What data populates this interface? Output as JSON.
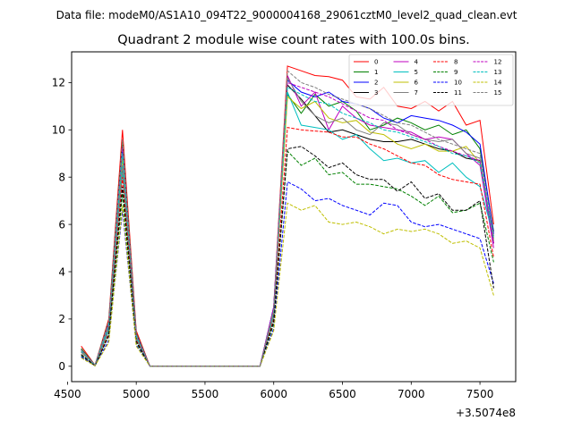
{
  "chart_data": {
    "type": "line",
    "suptitle": "Data file: modeM0/AS1A10_094T22_9000004168_29061cztM0_level2_quad_clean.evt",
    "title": "Quadrant 2 module wise count rates with 100.0s bins.",
    "xlabel": "",
    "ylabel": "",
    "x_offset_label": "+3.5074e8",
    "xlim": [
      4530,
      7760
    ],
    "ylim": [
      -0.65,
      13.3
    ],
    "xticks": [
      4500,
      5000,
      5500,
      6000,
      6500,
      7000,
      7500
    ],
    "xtick_labels": [
      "4500",
      "5000",
      "5500",
      "6000",
      "6500",
      "7000",
      "7500"
    ],
    "yticks": [
      0,
      2,
      4,
      6,
      8,
      10,
      12
    ],
    "ytick_labels": [
      "0",
      "2",
      "4",
      "6",
      "8",
      "10",
      "12"
    ],
    "legend_placement": "top-right",
    "legend_columns": 4,
    "x": [
      4600,
      4700,
      4800,
      4900,
      5000,
      5100,
      5200,
      5300,
      5400,
      5500,
      5600,
      5700,
      5800,
      5900,
      6000,
      6100,
      6200,
      6300,
      6400,
      6500,
      6600,
      6700,
      6800,
      6900,
      7000,
      7100,
      7200,
      7300,
      7400,
      7500,
      7600
    ],
    "series": [
      {
        "name": "0",
        "color": "#ff0000",
        "dash": false,
        "values": [
          0.85,
          0.05,
          2.0,
          10.0,
          1.5,
          0,
          0,
          0,
          0,
          0,
          0,
          0,
          0,
          0,
          2.5,
          12.7,
          12.5,
          12.3,
          12.25,
          12.1,
          11.4,
          11.3,
          11.8,
          11.0,
          10.9,
          11.2,
          10.8,
          11.2,
          10.2,
          10.4,
          6.0
        ]
      },
      {
        "name": "1",
        "color": "#008000",
        "dash": false,
        "values": [
          0.75,
          0.05,
          1.9,
          9.5,
          1.4,
          0,
          0,
          0,
          0,
          0,
          0,
          0,
          0,
          0,
          2.4,
          11.5,
          10.7,
          11.5,
          11.0,
          11.2,
          10.8,
          10.0,
          10.2,
          10.5,
          10.3,
          10.0,
          10.2,
          9.8,
          10.0,
          9.2,
          5.7
        ]
      },
      {
        "name": "2",
        "color": "#0000ff",
        "dash": false,
        "values": [
          0.7,
          0.05,
          1.8,
          9.2,
          1.35,
          0,
          0,
          0,
          0,
          0,
          0,
          0,
          0,
          0,
          2.5,
          12.1,
          11.6,
          11.4,
          11.6,
          11.2,
          11.1,
          10.9,
          10.5,
          10.3,
          10.6,
          10.5,
          10.4,
          10.2,
          9.9,
          9.4,
          5.6
        ]
      },
      {
        "name": "3",
        "color": "#000000",
        "dash": false,
        "values": [
          0.6,
          0.03,
          1.6,
          8.4,
          1.2,
          0,
          0,
          0,
          0,
          0,
          0,
          0,
          0,
          0,
          2.2,
          11.9,
          11.3,
          10.6,
          9.9,
          10.0,
          9.8,
          9.6,
          9.5,
          9.5,
          9.6,
          9.4,
          9.2,
          9.1,
          8.8,
          8.7,
          5.2
        ]
      },
      {
        "name": "4",
        "color": "#bf00bf",
        "dash": false,
        "values": [
          0.7,
          0.04,
          1.8,
          9.0,
          1.3,
          0,
          0,
          0,
          0,
          0,
          0,
          0,
          0,
          0,
          2.4,
          12.3,
          11.0,
          11.6,
          10.0,
          11.0,
          10.5,
          10.2,
          10.1,
          10.0,
          9.9,
          9.6,
          9.7,
          9.6,
          9.0,
          8.5,
          5.0
        ]
      },
      {
        "name": "5",
        "color": "#00bfbf",
        "dash": false,
        "values": [
          0.6,
          0.03,
          1.5,
          8.2,
          1.15,
          0,
          0,
          0,
          0,
          0,
          0,
          0,
          0,
          0,
          2.1,
          11.6,
          10.2,
          10.1,
          10.0,
          9.6,
          9.8,
          9.2,
          8.7,
          8.8,
          8.6,
          8.7,
          8.2,
          8.6,
          8.0,
          7.6,
          5.5
        ]
      },
      {
        "name": "6",
        "color": "#bfbf00",
        "dash": false,
        "values": [
          0.65,
          0.04,
          1.7,
          8.8,
          1.25,
          0,
          0,
          0,
          0,
          0,
          0,
          0,
          0,
          0,
          2.3,
          11.4,
          10.9,
          11.2,
          10.5,
          10.3,
          10.4,
          9.9,
          9.8,
          9.4,
          9.2,
          9.4,
          9.1,
          9.1,
          9.3,
          8.6,
          5.4
        ]
      },
      {
        "name": "7",
        "color": "#808080",
        "dash": false,
        "values": [
          0.6,
          0.03,
          1.6,
          8.5,
          1.2,
          0,
          0,
          0,
          0,
          0,
          0,
          0,
          0,
          0,
          2.2,
          12.2,
          11.2,
          10.6,
          10.3,
          10.5,
          10.0,
          9.8,
          10.3,
          10.2,
          9.8,
          9.6,
          9.5,
          9.6,
          9.0,
          8.8,
          5.3
        ]
      },
      {
        "name": "8",
        "color": "#ff0000",
        "dash": true,
        "values": [
          0.5,
          0.02,
          1.4,
          8.0,
          1.1,
          0,
          0,
          0,
          0,
          0,
          0,
          0,
          0,
          0,
          2.0,
          10.1,
          10.0,
          9.95,
          9.9,
          9.7,
          9.7,
          9.4,
          9.2,
          8.9,
          8.6,
          8.5,
          8.1,
          7.9,
          7.8,
          7.7,
          4.6
        ]
      },
      {
        "name": "9",
        "color": "#008000",
        "dash": true,
        "values": [
          0.45,
          0.02,
          1.3,
          7.3,
          1.0,
          0,
          0,
          0,
          0,
          0,
          0,
          0,
          0,
          0,
          1.8,
          9.1,
          8.5,
          8.8,
          8.1,
          8.2,
          7.7,
          7.7,
          7.6,
          7.5,
          7.2,
          6.8,
          7.2,
          6.5,
          6.6,
          6.9,
          4.4
        ]
      },
      {
        "name": "10",
        "color": "#0000ff",
        "dash": true,
        "values": [
          0.4,
          0.02,
          1.1,
          6.6,
          0.9,
          0,
          0,
          0,
          0,
          0,
          0,
          0,
          0,
          0,
          1.6,
          7.8,
          7.5,
          7.0,
          7.1,
          6.8,
          6.6,
          6.4,
          6.9,
          6.8,
          6.1,
          5.9,
          6.0,
          5.8,
          5.6,
          5.4,
          3.5
        ]
      },
      {
        "name": "11",
        "color": "#000000",
        "dash": true,
        "values": [
          0.5,
          0.02,
          1.3,
          7.6,
          1.05,
          0,
          0,
          0,
          0,
          0,
          0,
          0,
          0,
          0,
          1.9,
          9.2,
          9.3,
          8.9,
          8.4,
          8.6,
          8.1,
          7.9,
          7.9,
          7.4,
          7.8,
          7.1,
          7.3,
          6.6,
          6.6,
          7.0,
          3.3
        ]
      },
      {
        "name": "12",
        "color": "#bf00bf",
        "dash": true,
        "values": [
          0.7,
          0.04,
          1.8,
          9.3,
          1.3,
          0,
          0,
          0,
          0,
          0,
          0,
          0,
          0,
          0,
          2.5,
          12.0,
          11.8,
          11.6,
          11.4,
          11.1,
          10.8,
          10.5,
          10.4,
          10.0,
          9.8,
          9.6,
          9.3,
          9.1,
          8.9,
          8.7,
          5.2
        ]
      },
      {
        "name": "13",
        "color": "#00bfbf",
        "dash": true,
        "values": [
          0.65,
          0.04,
          1.7,
          9.0,
          1.25,
          0,
          0,
          0,
          0,
          0,
          0,
          0,
          0,
          0,
          2.3,
          11.8,
          11.5,
          11.2,
          11.1,
          10.7,
          10.5,
          10.3,
          10.0,
          9.9,
          9.7,
          9.5,
          9.3,
          9.0,
          8.9,
          8.6,
          5.4
        ]
      },
      {
        "name": "14",
        "color": "#bfbf00",
        "dash": true,
        "values": [
          0.35,
          0.02,
          1.0,
          6.8,
          0.85,
          0,
          0,
          0,
          0,
          0,
          0,
          0,
          0,
          0,
          1.5,
          6.9,
          6.6,
          6.8,
          6.1,
          6.0,
          6.1,
          5.9,
          5.6,
          5.8,
          5.7,
          5.8,
          5.6,
          5.2,
          5.3,
          5.0,
          3.0
        ]
      },
      {
        "name": "15",
        "color": "#808080",
        "dash": true,
        "values": [
          0.7,
          0.05,
          1.9,
          9.6,
          1.35,
          0,
          0,
          0,
          0,
          0,
          0,
          0,
          0,
          0,
          2.4,
          12.5,
          12.0,
          11.8,
          11.5,
          11.3,
          11.1,
          10.9,
          10.6,
          10.3,
          10.2,
          9.9,
          9.6,
          9.4,
          9.2,
          9.0,
          5.5
        ]
      }
    ]
  }
}
